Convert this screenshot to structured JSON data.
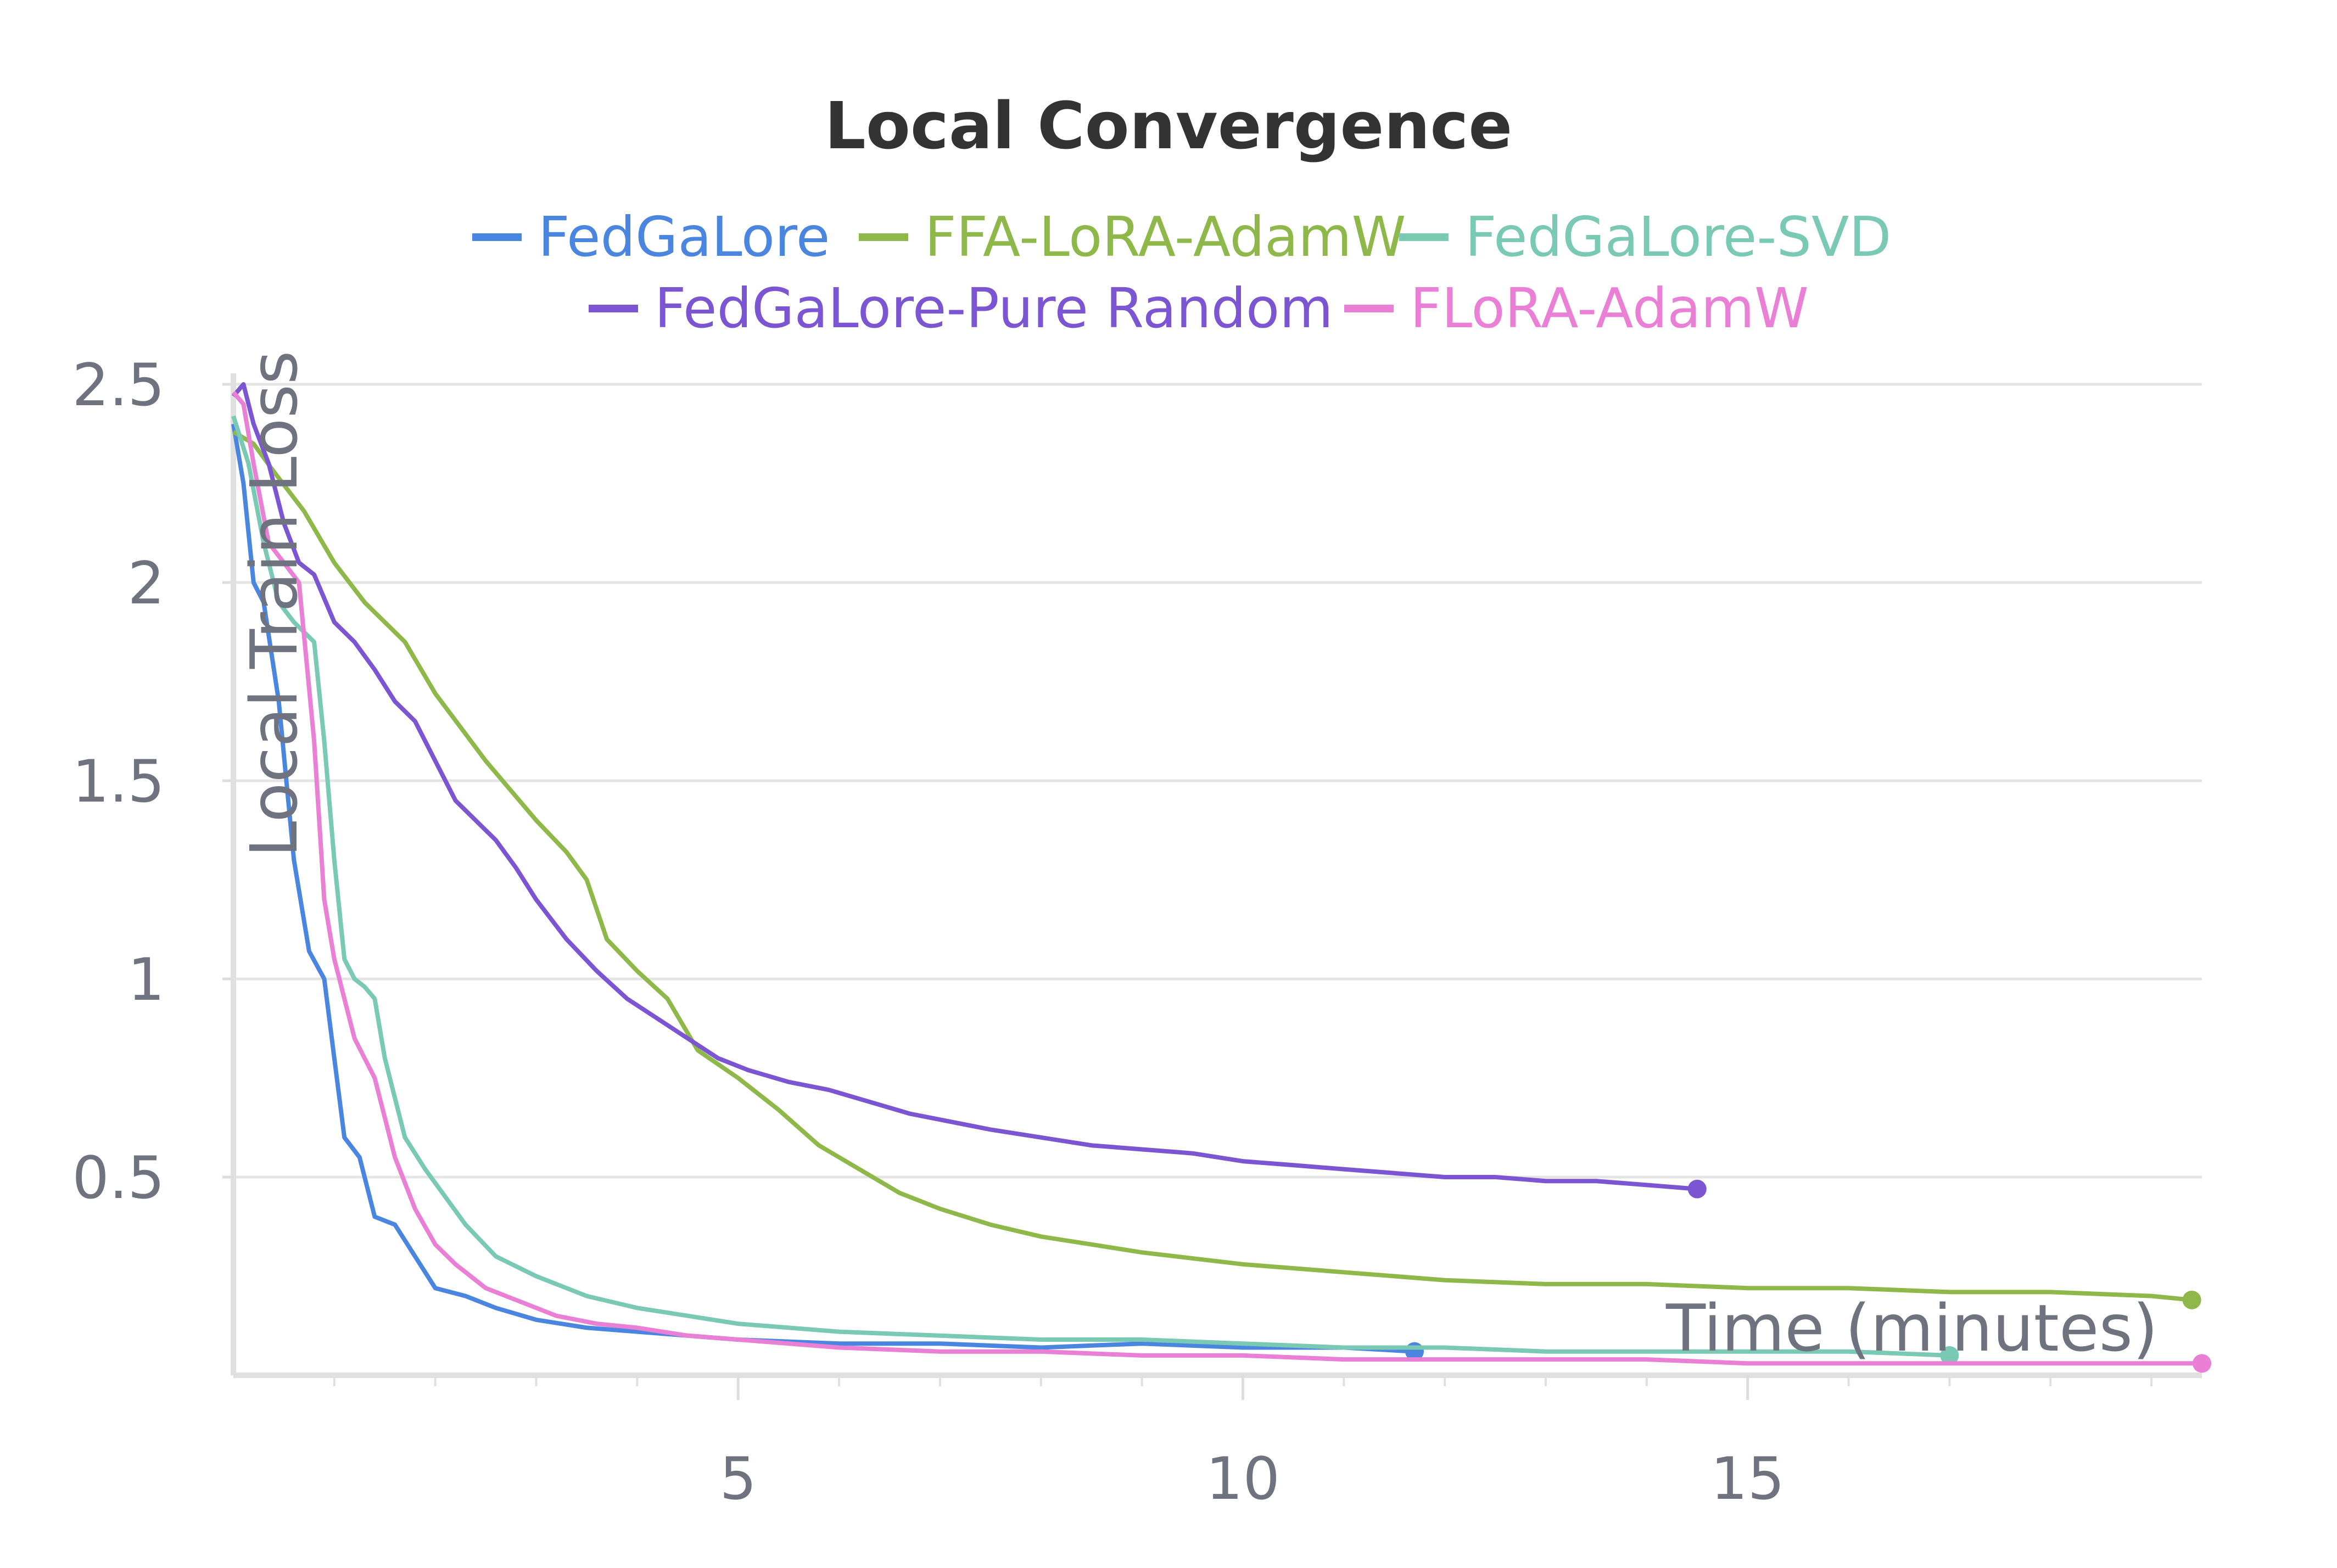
{
  "chart_data": {
    "type": "line",
    "title": "Local Convergence",
    "xlabel": "Time (minutes)",
    "ylabel": "Local Train Loss",
    "xlim": [
      0,
      19.5
    ],
    "ylim": [
      0,
      2.5
    ],
    "x_ticks": [
      {
        "value": 5,
        "label": "5"
      },
      {
        "value": 10,
        "label": "10"
      },
      {
        "value": 15,
        "label": "15"
      }
    ],
    "y_ticks": [
      {
        "value": 0.5,
        "label": "0.5"
      },
      {
        "value": 1,
        "label": "1"
      },
      {
        "value": 1.5,
        "label": "1.5"
      },
      {
        "value": 2,
        "label": "2"
      },
      {
        "value": 2.5,
        "label": "2.5"
      }
    ],
    "grid": true,
    "legend_position": "top",
    "series": [
      {
        "name": "FedGaLore",
        "color": "#4a86e0",
        "x": [
          0.0,
          0.1,
          0.2,
          0.3,
          0.45,
          0.6,
          0.75,
          0.9,
          1.0,
          1.1,
          1.25,
          1.4,
          1.6,
          1.8,
          2.0,
          2.3,
          2.6,
          3.0,
          3.5,
          4.0,
          4.5,
          5.0,
          6.0,
          7.0,
          8.0,
          9.0,
          10.0,
          11.0,
          11.7
        ],
        "y": [
          2.4,
          2.25,
          2.0,
          1.95,
          1.7,
          1.3,
          1.07,
          1.0,
          0.8,
          0.6,
          0.55,
          0.4,
          0.38,
          0.3,
          0.22,
          0.2,
          0.17,
          0.14,
          0.12,
          0.11,
          0.1,
          0.09,
          0.08,
          0.08,
          0.07,
          0.08,
          0.07,
          0.07,
          0.06
        ]
      },
      {
        "name": "FFA-LoRA-AdamW",
        "color": "#8fb84a",
        "x": [
          0.0,
          0.2,
          0.4,
          0.7,
          1.0,
          1.3,
          1.7,
          2.0,
          2.5,
          3.0,
          3.3,
          3.5,
          3.7,
          4.0,
          4.3,
          4.6,
          5.0,
          5.4,
          5.8,
          6.2,
          6.6,
          7.0,
          7.5,
          8.0,
          8.5,
          9.0,
          10.0,
          11.0,
          12.0,
          13.0,
          14.0,
          15.0,
          16.0,
          17.0,
          18.0,
          19.0,
          19.4
        ],
        "y": [
          2.38,
          2.35,
          2.28,
          2.18,
          2.05,
          1.95,
          1.85,
          1.72,
          1.55,
          1.4,
          1.32,
          1.25,
          1.1,
          1.02,
          0.95,
          0.82,
          0.75,
          0.67,
          0.58,
          0.52,
          0.46,
          0.42,
          0.38,
          0.35,
          0.33,
          0.31,
          0.28,
          0.26,
          0.24,
          0.23,
          0.23,
          0.22,
          0.22,
          0.21,
          0.21,
          0.2,
          0.19
        ]
      },
      {
        "name": "FedGaLore-SVD",
        "color": "#7ac9b5",
        "x": [
          0.0,
          0.15,
          0.3,
          0.45,
          0.6,
          0.8,
          0.9,
          1.0,
          1.1,
          1.2,
          1.3,
          1.4,
          1.5,
          1.7,
          1.9,
          2.1,
          2.3,
          2.6,
          3.0,
          3.5,
          4.0,
          4.5,
          5.0,
          6.0,
          7.0,
          8.0,
          9.0,
          10.0,
          11.0,
          12.0,
          13.0,
          14.0,
          15.0,
          16.0,
          17.0
        ],
        "y": [
          2.42,
          2.3,
          2.1,
          1.95,
          1.9,
          1.85,
          1.6,
          1.3,
          1.05,
          1.0,
          0.98,
          0.95,
          0.8,
          0.6,
          0.52,
          0.45,
          0.38,
          0.3,
          0.25,
          0.2,
          0.17,
          0.15,
          0.13,
          0.11,
          0.1,
          0.09,
          0.09,
          0.08,
          0.07,
          0.07,
          0.06,
          0.06,
          0.06,
          0.06,
          0.05
        ]
      },
      {
        "name": "FedGaLore-Pure Random",
        "color": "#7c55d2",
        "x": [
          0.0,
          0.1,
          0.2,
          0.35,
          0.5,
          0.65,
          0.8,
          1.0,
          1.2,
          1.4,
          1.6,
          1.8,
          2.0,
          2.2,
          2.4,
          2.6,
          2.8,
          3.0,
          3.3,
          3.6,
          3.9,
          4.2,
          4.5,
          4.8,
          5.1,
          5.5,
          5.9,
          6.3,
          6.7,
          7.1,
          7.5,
          8.0,
          8.5,
          9.0,
          9.5,
          10.0,
          10.5,
          11.0,
          11.5,
          12.0,
          12.5,
          13.0,
          13.5,
          14.0,
          14.5
        ],
        "y": [
          2.47,
          2.5,
          2.4,
          2.3,
          2.15,
          2.05,
          2.02,
          1.9,
          1.85,
          1.78,
          1.7,
          1.65,
          1.55,
          1.45,
          1.4,
          1.35,
          1.28,
          1.2,
          1.1,
          1.02,
          0.95,
          0.9,
          0.85,
          0.8,
          0.77,
          0.74,
          0.72,
          0.69,
          0.66,
          0.64,
          0.62,
          0.6,
          0.58,
          0.57,
          0.56,
          0.54,
          0.53,
          0.52,
          0.51,
          0.5,
          0.5,
          0.49,
          0.49,
          0.48,
          0.47
        ]
      },
      {
        "name": "FLoRA-AdamW",
        "color": "#ea7fd6",
        "x": [
          0.0,
          0.1,
          0.2,
          0.35,
          0.5,
          0.65,
          0.8,
          0.9,
          1.0,
          1.1,
          1.2,
          1.3,
          1.4,
          1.6,
          1.8,
          2.0,
          2.2,
          2.5,
          2.8,
          3.2,
          3.6,
          4.0,
          4.5,
          5.0,
          6.0,
          7.0,
          8.0,
          9.0,
          10.0,
          11.0,
          12.0,
          13.0,
          14.0,
          15.0,
          16.0,
          17.0,
          18.0,
          19.0,
          19.5
        ],
        "y": [
          2.48,
          2.45,
          2.3,
          2.1,
          2.05,
          2.0,
          1.6,
          1.2,
          1.05,
          0.95,
          0.85,
          0.8,
          0.75,
          0.55,
          0.42,
          0.33,
          0.28,
          0.22,
          0.19,
          0.15,
          0.13,
          0.12,
          0.1,
          0.09,
          0.07,
          0.06,
          0.06,
          0.05,
          0.05,
          0.04,
          0.04,
          0.04,
          0.04,
          0.03,
          0.03,
          0.03,
          0.03,
          0.03,
          0.03
        ]
      }
    ]
  }
}
